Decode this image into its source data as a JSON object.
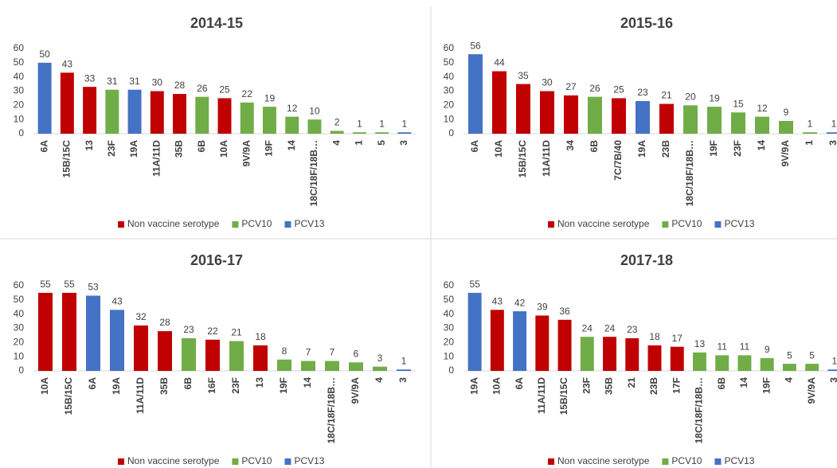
{
  "chart_data": [
    {
      "type": "bar",
      "title": "2014-15",
      "categories": [
        "6A",
        "15B/15C",
        "13",
        "23F",
        "19A",
        "11A/11D",
        "35B",
        "6B",
        "10A",
        "9V/9A",
        "19F",
        "14",
        "18C/18F/18B…",
        "4",
        "1",
        "5",
        "3"
      ],
      "series": [
        {
          "name": "Non vaccine serotype",
          "color": "#c00000",
          "values": [
            null,
            43,
            33,
            null,
            null,
            30,
            28,
            null,
            25,
            null,
            null,
            null,
            null,
            null,
            null,
            null,
            null
          ]
        },
        {
          "name": "PCV10",
          "color": "#70ad47",
          "values": [
            null,
            null,
            null,
            31,
            null,
            null,
            null,
            26,
            null,
            22,
            19,
            12,
            10,
            2,
            1,
            1,
            null
          ]
        },
        {
          "name": "PCV13",
          "color": "#4472c4",
          "values": [
            50,
            null,
            null,
            null,
            31,
            null,
            null,
            null,
            null,
            null,
            null,
            null,
            null,
            null,
            null,
            null,
            1
          ]
        }
      ],
      "ylim": [
        0,
        60
      ],
      "yticks": [
        0,
        10,
        20,
        30,
        40,
        50,
        60
      ]
    },
    {
      "type": "bar",
      "title": "2015-16",
      "categories": [
        "6A",
        "10A",
        "15B/15C",
        "11A/11D",
        "34",
        "6B",
        "7C/7B/40",
        "19A",
        "23B",
        "18C/18F/18B…",
        "19F",
        "23F",
        "14",
        "9V/9A",
        "1",
        "3"
      ],
      "series": [
        {
          "name": "Non vaccine serotype",
          "color": "#c00000",
          "values": [
            null,
            44,
            35,
            30,
            27,
            null,
            25,
            null,
            21,
            null,
            null,
            null,
            null,
            null,
            null,
            null
          ]
        },
        {
          "name": "PCV10",
          "color": "#70ad47",
          "values": [
            null,
            null,
            null,
            null,
            null,
            26,
            null,
            null,
            null,
            20,
            19,
            15,
            12,
            9,
            1,
            null
          ]
        },
        {
          "name": "PCV13",
          "color": "#4472c4",
          "values": [
            56,
            null,
            null,
            null,
            null,
            null,
            null,
            23,
            null,
            null,
            null,
            null,
            null,
            null,
            null,
            1
          ]
        }
      ],
      "ylim": [
        0,
        60
      ],
      "yticks": [
        0,
        10,
        20,
        30,
        40,
        50,
        60
      ]
    },
    {
      "type": "bar",
      "title": "2016-17",
      "categories": [
        "10A",
        "15B/15C",
        "6A",
        "19A",
        "11A/11D",
        "35B",
        "6B",
        "16F",
        "23F",
        "13",
        "19F",
        "14",
        "18C/18F/18B…",
        "9V/9A",
        "4",
        "3"
      ],
      "series": [
        {
          "name": "Non vaccine serotype",
          "color": "#c00000",
          "values": [
            55,
            55,
            null,
            null,
            32,
            28,
            null,
            22,
            null,
            18,
            null,
            null,
            null,
            null,
            null,
            null
          ]
        },
        {
          "name": "PCV10",
          "color": "#70ad47",
          "values": [
            null,
            null,
            null,
            null,
            null,
            null,
            23,
            null,
            21,
            null,
            8,
            7,
            7,
            6,
            3,
            null
          ]
        },
        {
          "name": "PCV13",
          "color": "#4472c4",
          "values": [
            null,
            null,
            53,
            43,
            null,
            null,
            null,
            null,
            null,
            null,
            null,
            null,
            null,
            null,
            null,
            1
          ]
        }
      ],
      "ylim": [
        0,
        60
      ],
      "yticks": [
        0,
        10,
        20,
        30,
        40,
        50,
        60
      ]
    },
    {
      "type": "bar",
      "title": "2017-18",
      "categories": [
        "19A",
        "10A",
        "6A",
        "11A/11D",
        "15B/15C",
        "23F",
        "35B",
        "21",
        "23B",
        "17F",
        "18C/18F/18B…",
        "6B",
        "14",
        "19F",
        "4",
        "9V/9A",
        "3"
      ],
      "series": [
        {
          "name": "Non vaccine serotype",
          "color": "#c00000",
          "values": [
            null,
            43,
            null,
            39,
            36,
            null,
            24,
            23,
            18,
            17,
            null,
            null,
            null,
            null,
            null,
            null,
            null
          ]
        },
        {
          "name": "PCV10",
          "color": "#70ad47",
          "values": [
            null,
            null,
            null,
            null,
            null,
            24,
            null,
            null,
            null,
            null,
            13,
            11,
            11,
            9,
            5,
            5,
            null
          ]
        },
        {
          "name": "PCV13",
          "color": "#4472c4",
          "values": [
            55,
            null,
            42,
            null,
            null,
            null,
            null,
            null,
            null,
            null,
            null,
            null,
            null,
            null,
            null,
            null,
            1
          ]
        }
      ],
      "ylim": [
        0,
        60
      ],
      "yticks": [
        0,
        10,
        20,
        30,
        40,
        50,
        60
      ]
    }
  ]
}
